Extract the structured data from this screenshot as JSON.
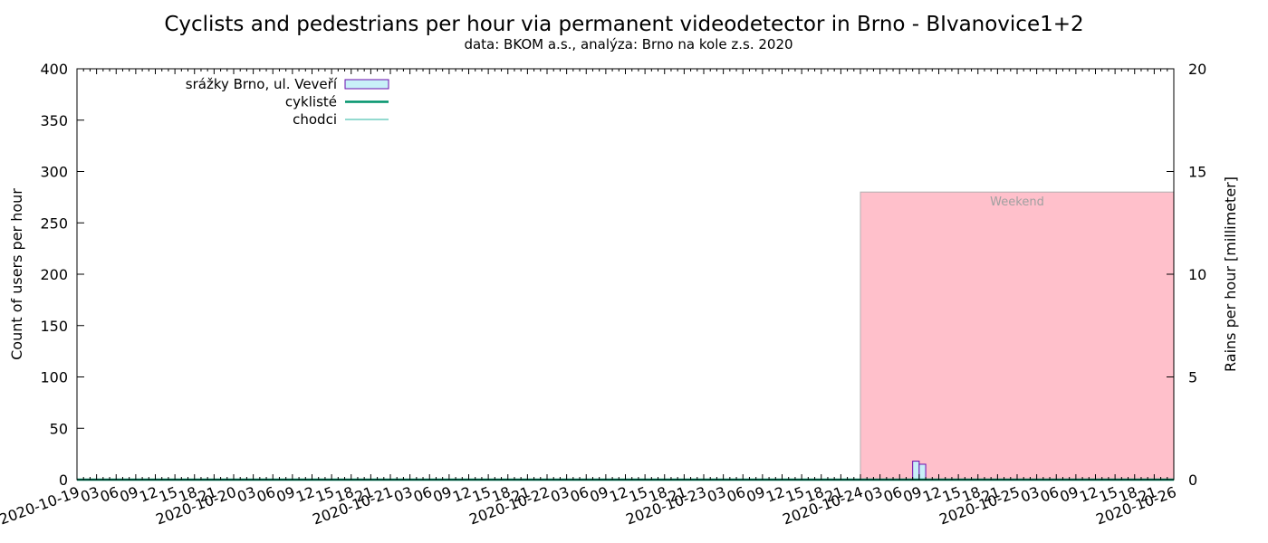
{
  "chart_data": {
    "type": "bar",
    "title": "Cyclists and pedestrians per hour via permanent videodetector in Brno - BIvanovice1+2",
    "subtitle": "data: BKOM a.s., analýza: Brno na kole z.s. 2020",
    "ylabel": "Count of users per hour",
    "y2label": "Rains per hour [millimeter]",
    "ylim": [
      0,
      400
    ],
    "y2lim": [
      0,
      20
    ],
    "yticks": [
      "0",
      "50",
      "100",
      "150",
      "200",
      "250",
      "300",
      "350",
      "400"
    ],
    "y2ticks": [
      "0",
      "5",
      "10",
      "15",
      "20"
    ],
    "xlim": [
      "2020-10-19 00:00",
      "2020-10-26 00:00"
    ],
    "xtick_labels": [
      "2020-10-19",
      "03",
      "06",
      "09",
      "12",
      "15",
      "18",
      "21",
      "2020-10-20",
      "03",
      "06",
      "09",
      "12",
      "15",
      "18",
      "21",
      "2020-10-21",
      "03",
      "06",
      "09",
      "12",
      "15",
      "18",
      "21",
      "2020-10-22",
      "03",
      "06",
      "09",
      "12",
      "15",
      "18",
      "21",
      "2020-10-23",
      "03",
      "06",
      "09",
      "12",
      "15",
      "18",
      "21",
      "2020-10-24",
      "03",
      "06",
      "09",
      "12",
      "15",
      "18",
      "21",
      "2020-10-25",
      "03",
      "06",
      "09",
      "12",
      "15",
      "18",
      "21",
      "2020-10-26"
    ],
    "legend_position": "top-left",
    "series": [
      {
        "name": "srážky Brno, ul. Veveří",
        "kind": "bar",
        "axis": "y2",
        "color": "#c8f0f8",
        "edge_color": "#6a0dad",
        "points": [
          {
            "x": "2020-10-24 08:00",
            "y": 0.9
          },
          {
            "x": "2020-10-24 09:00",
            "y": 0.75
          }
        ]
      },
      {
        "name": "cyklisté",
        "kind": "line",
        "axis": "y",
        "color": "#00936b",
        "points": [
          {
            "x": "2020-10-19 00:00",
            "y": 0
          },
          {
            "x": "2020-10-26 00:00",
            "y": 0
          }
        ]
      },
      {
        "name": "chodci",
        "kind": "line",
        "axis": "y",
        "color": "#2ab5a0",
        "points": [
          {
            "x": "2020-10-19 00:00",
            "y": 0
          },
          {
            "x": "2020-10-26 00:00",
            "y": 0
          }
        ]
      }
    ],
    "weekend_band": {
      "label": "Weekend",
      "from": "2020-10-24 00:00",
      "to": "2020-10-26 00:00",
      "ytop": 280,
      "color": "#ffc0cb"
    },
    "grid": false
  }
}
